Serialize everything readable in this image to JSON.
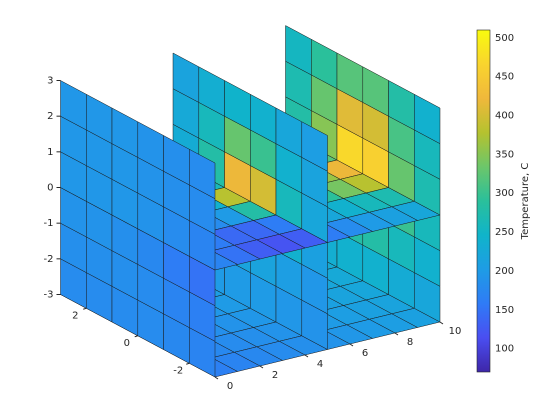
{
  "chart_data": {
    "type": "slice",
    "colormap": "parula",
    "xlim": [
      0,
      10
    ],
    "ylim": [
      -3,
      3
    ],
    "zlim": [
      -3,
      3
    ],
    "xticks": [
      0,
      2,
      4,
      6,
      8,
      10
    ],
    "yticks": [
      -2,
      0,
      2
    ],
    "zticks": [
      -3,
      -2,
      -1,
      0,
      1,
      2,
      3
    ],
    "clim": [
      70,
      510
    ],
    "cticks": [
      100,
      150,
      200,
      250,
      300,
      350,
      400,
      450,
      500
    ],
    "colorbar_label": "Temperature, C",
    "slices": [
      {
        "axis": "x",
        "position": 0,
        "values": [
          [
            170,
            175,
            180,
            180,
            180,
            180
          ],
          [
            165,
            170,
            180,
            185,
            185,
            185
          ],
          [
            150,
            160,
            175,
            185,
            190,
            190
          ],
          [
            170,
            180,
            190,
            195,
            195,
            195
          ],
          [
            180,
            185,
            190,
            195,
            195,
            195
          ],
          [
            180,
            185,
            190,
            195,
            195,
            195
          ]
        ]
      },
      {
        "axis": "x",
        "position": 5,
        "values": [
          [
            190,
            195,
            200,
            200,
            200,
            195
          ],
          [
            195,
            205,
            215,
            215,
            210,
            200
          ],
          [
            210,
            240,
            290,
            290,
            250,
            220
          ],
          [
            220,
            260,
            400,
            420,
            280,
            230
          ],
          [
            215,
            240,
            300,
            330,
            260,
            225
          ],
          [
            205,
            220,
            240,
            245,
            235,
            215
          ]
        ]
      },
      {
        "axis": "x",
        "position": 10,
        "values": [
          [
            220,
            230,
            240,
            240,
            235,
            225
          ],
          [
            240,
            260,
            280,
            280,
            265,
            245
          ],
          [
            260,
            300,
            380,
            390,
            320,
            270
          ],
          [
            270,
            330,
            460,
            470,
            350,
            280
          ],
          [
            260,
            310,
            400,
            410,
            330,
            270
          ],
          [
            240,
            280,
            320,
            320,
            290,
            255
          ]
        ]
      },
      {
        "axis": "z",
        "position": -3,
        "values": [
          [
            165,
            170,
            175,
            180,
            185,
            190,
            195,
            200,
            205,
            210
          ],
          [
            170,
            175,
            180,
            185,
            190,
            195,
            200,
            205,
            210,
            215
          ],
          [
            175,
            180,
            185,
            190,
            195,
            200,
            205,
            210,
            215,
            220
          ],
          [
            180,
            185,
            190,
            195,
            200,
            205,
            210,
            215,
            220,
            225
          ],
          [
            185,
            190,
            195,
            200,
            205,
            210,
            215,
            220,
            225,
            230
          ],
          [
            190,
            195,
            200,
            205,
            210,
            215,
            220,
            225,
            230,
            235
          ]
        ]
      },
      {
        "axis": "z",
        "position": 0,
        "values": [
          [
            170,
            150,
            130,
            120,
            130,
            160,
            180,
            200,
            210,
            220
          ],
          [
            180,
            160,
            140,
            140,
            160,
            200,
            220,
            240,
            260,
            270
          ],
          [
            190,
            180,
            180,
            200,
            280,
            300,
            270,
            290,
            340,
            380
          ],
          [
            195,
            190,
            200,
            240,
            380,
            330,
            280,
            300,
            360,
            420
          ],
          [
            195,
            195,
            200,
            220,
            260,
            260,
            260,
            280,
            300,
            320
          ],
          [
            195,
            195,
            200,
            210,
            230,
            240,
            250,
            260,
            270,
            280
          ]
        ]
      }
    ]
  }
}
